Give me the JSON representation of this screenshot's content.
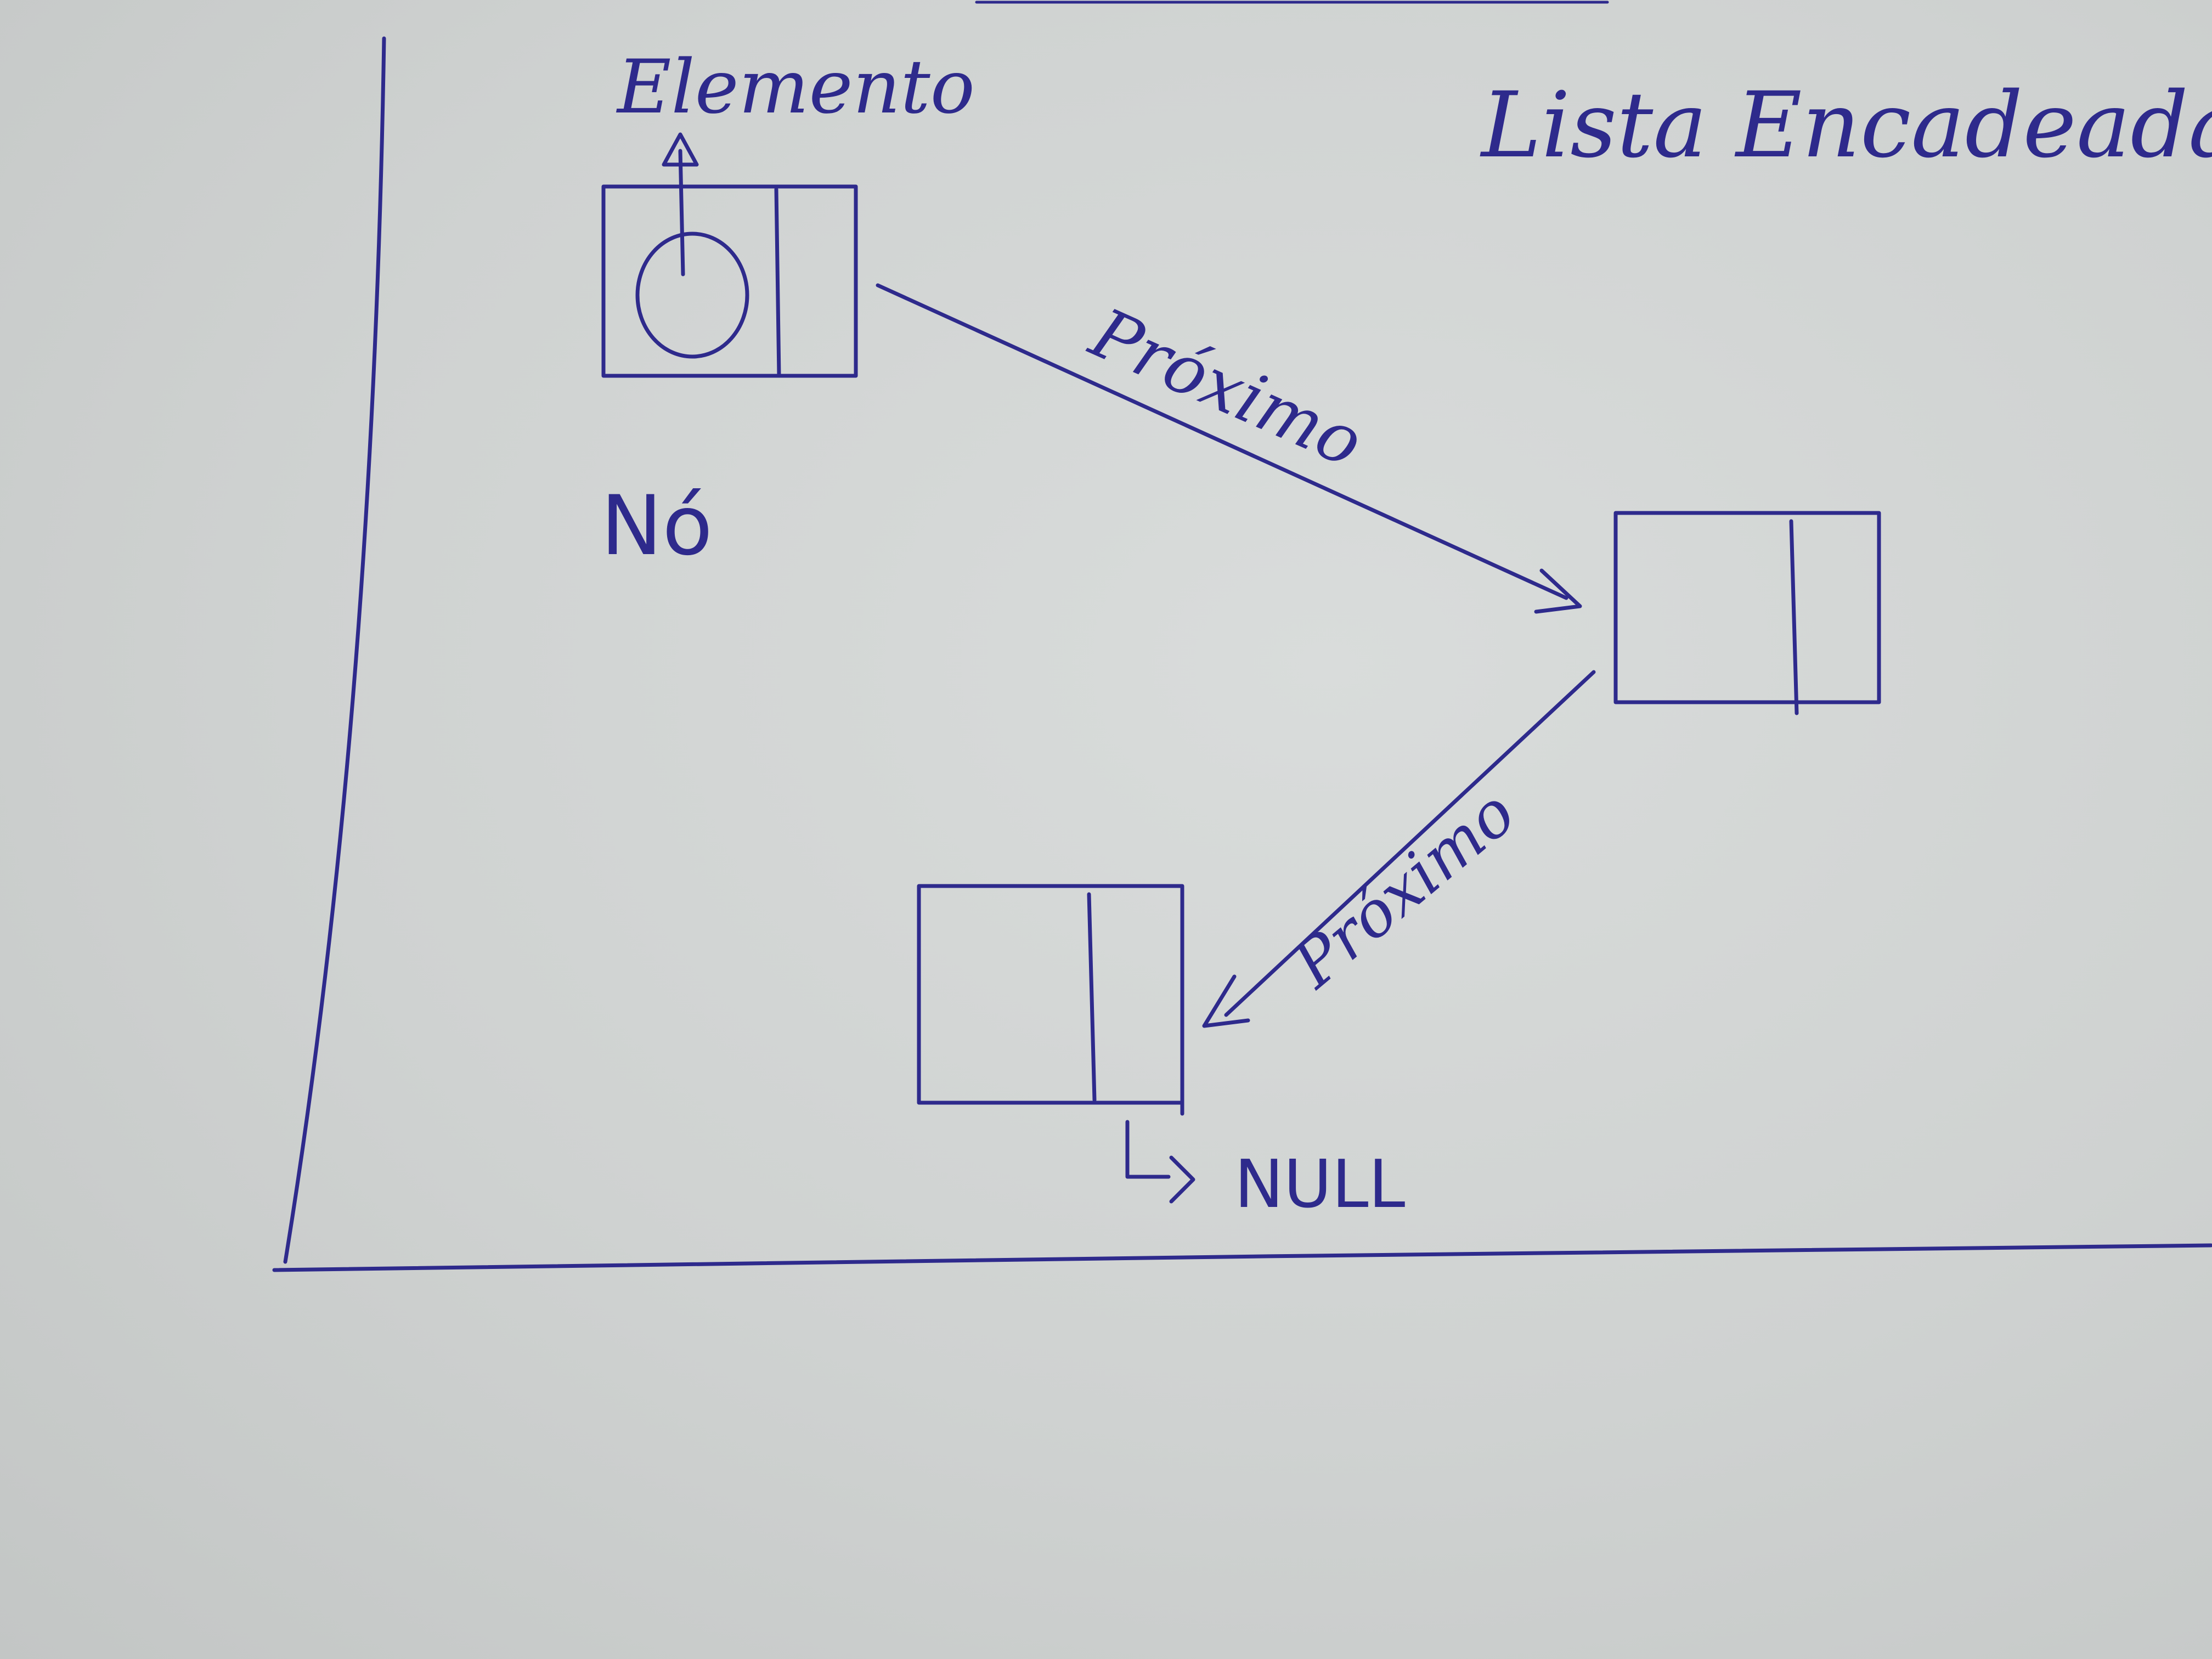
{
  "title": "Lista Encadeada",
  "labels": {
    "element": "Elemento",
    "node": "Nó",
    "next_1": "Próximo",
    "next_2": "Próximo",
    "null": "NULL"
  },
  "ink_color": "#2e2a8c",
  "paper_color": "#d6d9d8"
}
